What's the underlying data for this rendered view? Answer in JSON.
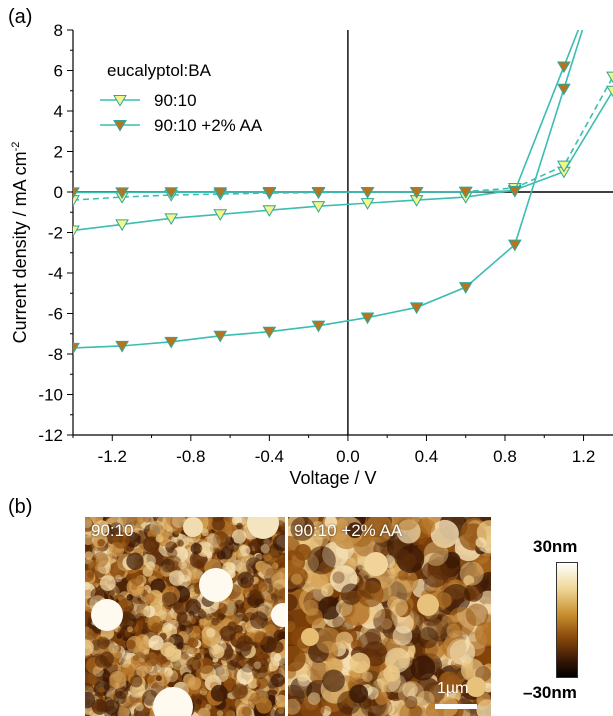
{
  "panel_labels": {
    "a": "(a)",
    "b": "(b)"
  },
  "colors": {
    "light_fill": "#f4f58a",
    "dark_fill": "#b8741c",
    "line": "#3cbdb0",
    "marker_edge": "#2aa89c"
  },
  "chart_data": {
    "type": "line",
    "xlabel": "Voltage / V",
    "ylabel": "Current density / mA cm",
    "ylabel_sup": "-2",
    "xlim": [
      -1.4,
      1.35
    ],
    "ylim": [
      -12,
      8
    ],
    "xticks": [
      -1.2,
      -0.8,
      -0.4,
      0.0,
      0.4,
      0.8,
      1.2
    ],
    "xtick_labels": [
      "-1.2",
      "-0.8",
      "-0.4",
      "0.0",
      "0.4",
      "0.8",
      "1.2"
    ],
    "yticks": [
      -12,
      -10,
      -8,
      -6,
      -4,
      -2,
      0,
      2,
      4,
      6,
      8
    ],
    "ytick_labels": [
      "-12",
      "-10",
      "-8",
      "-6",
      "-4",
      "-2",
      "0",
      "2",
      "4",
      "6",
      "8"
    ],
    "grid": false,
    "legend_title": "eucalyptol:BA",
    "legend_position": "top-left",
    "series": [
      {
        "name": "90:10",
        "condition": "light",
        "marker": "triangle-down",
        "fill": "light",
        "dash": false,
        "x": [
          -1.4,
          -1.15,
          -0.9,
          -0.65,
          -0.4,
          -0.15,
          0.1,
          0.35,
          0.6,
          0.85,
          1.1,
          1.35
        ],
        "y": [
          -1.9,
          -1.6,
          -1.3,
          -1.1,
          -0.9,
          -0.7,
          -0.55,
          -0.4,
          -0.25,
          0.1,
          1.0,
          5.0
        ]
      },
      {
        "name": "",
        "condition": "dark",
        "marker": "triangle-down",
        "fill": "light",
        "dash": true,
        "x": [
          -1.4,
          -1.15,
          -0.9,
          -0.65,
          -0.4,
          -0.15,
          0.1,
          0.35,
          0.6,
          0.85,
          1.1,
          1.35
        ],
        "y": [
          -0.4,
          -0.25,
          -0.15,
          -0.1,
          -0.05,
          -0.03,
          0.0,
          0.0,
          0.02,
          0.2,
          1.3,
          5.7
        ]
      },
      {
        "name": "90:10 +2% AA",
        "condition": "light",
        "marker": "triangle-down",
        "fill": "dark",
        "dash": false,
        "x": [
          -1.4,
          -1.15,
          -0.9,
          -0.65,
          -0.4,
          -0.15,
          0.1,
          0.35,
          0.6,
          0.85,
          1.1
        ],
        "y": [
          -7.7,
          -7.6,
          -7.4,
          -7.1,
          -6.9,
          -6.6,
          -6.2,
          -5.7,
          -4.7,
          -2.6,
          5.1
        ]
      },
      {
        "name": "",
        "condition": "dark",
        "marker": "triangle-down",
        "fill": "dark",
        "dash": false,
        "x": [
          -1.4,
          -1.15,
          -0.9,
          -0.65,
          -0.4,
          -0.15,
          0.1,
          0.35,
          0.6,
          0.85,
          1.1
        ],
        "y": [
          -0.02,
          -0.02,
          -0.01,
          -0.01,
          0.0,
          0.0,
          0.0,
          0.0,
          0.0,
          0.05,
          6.2
        ]
      }
    ]
  },
  "afm": {
    "left_caption": "90:10",
    "right_caption": "90:10 +2% AA",
    "scale_label": "1µm",
    "colorbar_top": "30nm",
    "colorbar_bottom": "–30nm"
  }
}
